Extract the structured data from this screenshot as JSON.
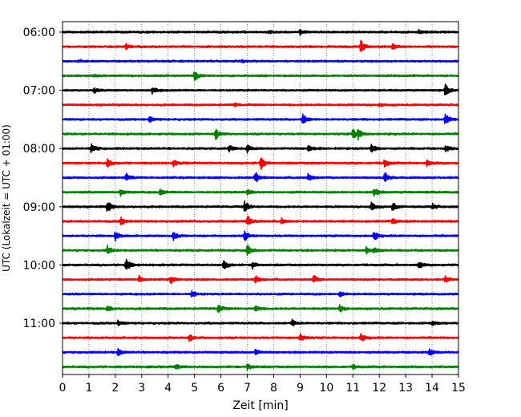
{
  "chart_data": {
    "type": "line",
    "title": "",
    "xlabel": "Zeit  [min]",
    "ylabel": "UTC (Lokalzeit = UTC + 01:00)",
    "xlim": [
      0,
      15
    ],
    "x_ticks": [
      "0",
      "1",
      "2",
      "3",
      "4",
      "5",
      "6",
      "7",
      "8",
      "9",
      "10",
      "11",
      "12",
      "13",
      "14",
      "15"
    ],
    "y_ticks": [
      "06:00",
      "07:00",
      "08:00",
      "09:00",
      "10:00",
      "11:00"
    ],
    "grid": "vertical dotted",
    "colors": [
      "#000000",
      "#ff0000",
      "#0000ff",
      "#008000"
    ],
    "trace_count": 24,
    "trace_interval_minutes": 15,
    "start_time": "06:00",
    "series": [
      {
        "start": "06:00",
        "color": "#000000",
        "events": [
          [
            7.8,
            0.3
          ],
          [
            9.0,
            0.3
          ],
          [
            13.5,
            0.3
          ]
        ]
      },
      {
        "start": "06:15",
        "color": "#ff0000",
        "events": [
          [
            2.4,
            0.4
          ],
          [
            11.3,
            1.0
          ],
          [
            12.5,
            0.3
          ]
        ]
      },
      {
        "start": "06:30",
        "color": "#0000ff",
        "events": [
          [
            0.6,
            0.2
          ],
          [
            6.8,
            0.2
          ]
        ]
      },
      {
        "start": "06:45",
        "color": "#008000",
        "events": [
          [
            1.2,
            0.2
          ],
          [
            5.0,
            0.8
          ]
        ]
      },
      {
        "start": "07:00",
        "color": "#000000",
        "events": [
          [
            1.2,
            0.3
          ],
          [
            3.4,
            0.5
          ],
          [
            14.5,
            0.9
          ]
        ]
      },
      {
        "start": "07:15",
        "color": "#ff0000",
        "events": [
          [
            6.5,
            0.2
          ],
          [
            12.0,
            0.2
          ]
        ]
      },
      {
        "start": "07:30",
        "color": "#0000ff",
        "events": [
          [
            3.3,
            0.4
          ],
          [
            9.1,
            0.8
          ],
          [
            14.5,
            0.8
          ]
        ]
      },
      {
        "start": "07:45",
        "color": "#008000",
        "events": [
          [
            5.8,
            0.8
          ],
          [
            11.0,
            0.8
          ],
          [
            11.2,
            0.6
          ]
        ]
      },
      {
        "start": "08:00",
        "color": "#000000",
        "events": [
          [
            1.1,
            0.8
          ],
          [
            6.3,
            0.5
          ],
          [
            7.0,
            0.5
          ],
          [
            9.3,
            0.5
          ],
          [
            11.7,
            0.7
          ],
          [
            14.5,
            0.5
          ]
        ]
      },
      {
        "start": "08:15",
        "color": "#ff0000",
        "events": [
          [
            1.7,
            0.6
          ],
          [
            4.2,
            0.4
          ],
          [
            7.5,
            1.0
          ],
          [
            12.2,
            0.6
          ],
          [
            13.8,
            0.4
          ]
        ]
      },
      {
        "start": "08:30",
        "color": "#0000ff",
        "events": [
          [
            2.4,
            0.6
          ],
          [
            7.3,
            0.9
          ],
          [
            9.3,
            0.6
          ],
          [
            12.2,
            0.8
          ]
        ]
      },
      {
        "start": "08:45",
        "color": "#008000",
        "events": [
          [
            2.2,
            0.6
          ],
          [
            3.7,
            0.4
          ],
          [
            7.0,
            0.5
          ],
          [
            11.8,
            0.7
          ]
        ]
      },
      {
        "start": "09:00",
        "color": "#000000",
        "events": [
          [
            1.7,
            0.9
          ],
          [
            6.9,
            0.8
          ],
          [
            11.7,
            0.6
          ],
          [
            12.5,
            0.6
          ],
          [
            14.0,
            0.4
          ]
        ]
      },
      {
        "start": "09:15",
        "color": "#ff0000",
        "events": [
          [
            2.2,
            0.6
          ],
          [
            7.0,
            0.8
          ],
          [
            8.3,
            0.4
          ],
          [
            12.5,
            0.4
          ]
        ]
      },
      {
        "start": "09:30",
        "color": "#0000ff",
        "events": [
          [
            2.0,
            0.6
          ],
          [
            4.2,
            0.6
          ],
          [
            6.9,
            0.7
          ],
          [
            11.8,
            0.6
          ]
        ]
      },
      {
        "start": "09:45",
        "color": "#008000",
        "events": [
          [
            1.7,
            0.6
          ],
          [
            7.0,
            0.8
          ],
          [
            11.5,
            0.5
          ],
          [
            11.8,
            0.5
          ]
        ]
      },
      {
        "start": "10:00",
        "color": "#000000",
        "events": [
          [
            2.4,
            1.0
          ],
          [
            6.1,
            0.7
          ],
          [
            7.2,
            0.5
          ],
          [
            13.5,
            0.5
          ]
        ]
      },
      {
        "start": "10:15",
        "color": "#ff0000",
        "events": [
          [
            2.9,
            0.5
          ],
          [
            4.1,
            0.5
          ],
          [
            7.3,
            0.6
          ],
          [
            9.5,
            0.6
          ],
          [
            14.5,
            0.5
          ]
        ]
      },
      {
        "start": "10:30",
        "color": "#0000ff",
        "events": [
          [
            4.9,
            0.5
          ],
          [
            10.5,
            0.4
          ]
        ]
      },
      {
        "start": "10:45",
        "color": "#008000",
        "events": [
          [
            1.7,
            0.4
          ],
          [
            5.9,
            0.6
          ],
          [
            7.3,
            0.4
          ],
          [
            10.5,
            0.5
          ]
        ]
      },
      {
        "start": "11:00",
        "color": "#000000",
        "events": [
          [
            2.1,
            0.3
          ],
          [
            8.7,
            0.5
          ],
          [
            14.0,
            0.3
          ]
        ]
      },
      {
        "start": "11:15",
        "color": "#ff0000",
        "events": [
          [
            4.8,
            0.5
          ],
          [
            9.0,
            0.6
          ],
          [
            11.3,
            0.5
          ]
        ]
      },
      {
        "start": "11:30",
        "color": "#0000ff",
        "events": [
          [
            2.1,
            0.5
          ],
          [
            7.3,
            0.4
          ],
          [
            13.9,
            0.5
          ]
        ]
      },
      {
        "start": "11:45",
        "color": "#008000",
        "events": [
          [
            4.3,
            0.4
          ],
          [
            7.0,
            0.5
          ],
          [
            11.0,
            0.3
          ]
        ]
      }
    ]
  }
}
